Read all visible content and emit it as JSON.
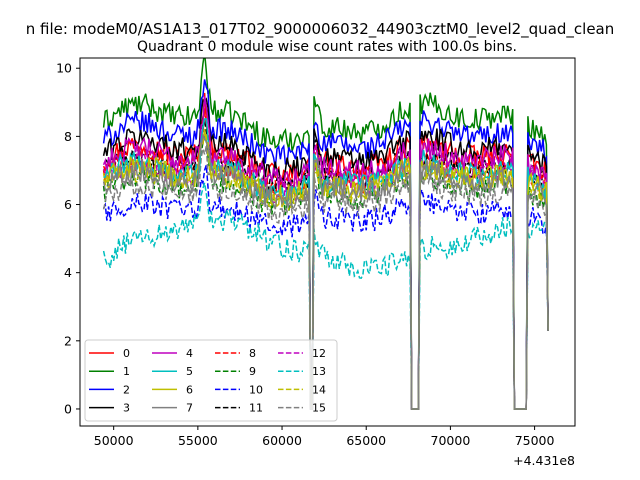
{
  "chart_data": {
    "type": "line",
    "suptitle": "n file: modeM0/AS1A13_017T02_9000006032_44903cztM0_level2_quad_clean",
    "title": "Quadrant 0 module wise count rates with 100.0s bins.",
    "xlabel": "",
    "ylabel": "",
    "x_offset_label": "+4.431e8",
    "xlim": [
      48000,
      77400
    ],
    "ylim": [
      -0.5,
      10.3
    ],
    "x_ticks": [
      50000,
      55000,
      60000,
      65000,
      70000,
      75000
    ],
    "x_tick_labels": [
      "50000",
      "55000",
      "60000",
      "65000",
      "70000",
      "75000"
    ],
    "y_ticks": [
      0,
      2,
      4,
      6,
      8,
      10
    ],
    "y_tick_labels": [
      "0",
      "2",
      "4",
      "6",
      "8",
      "10"
    ],
    "bin_width": 100,
    "gti": [
      [
        49400,
        61600
      ],
      [
        61900,
        67600
      ],
      [
        68200,
        73700
      ],
      [
        74600,
        75800
      ]
    ],
    "gaps": [
      [
        61650,
        61850
      ],
      [
        67650,
        68150
      ],
      [
        73750,
        74550
      ]
    ],
    "grid": false,
    "legend_position": "lower-left",
    "series": [
      {
        "name": "0",
        "color": "#ff0000",
        "dash": "solid",
        "level": 7.3
      },
      {
        "name": "1",
        "color": "#008000",
        "dash": "solid",
        "level": 8.4
      },
      {
        "name": "2",
        "color": "#0000ff",
        "dash": "solid",
        "level": 7.9
      },
      {
        "name": "3",
        "color": "#000000",
        "dash": "solid",
        "level": 7.5
      },
      {
        "name": "4",
        "color": "#bf00bf",
        "dash": "solid",
        "level": 7.2
      },
      {
        "name": "5",
        "color": "#00bfbf",
        "dash": "solid",
        "level": 6.8
      },
      {
        "name": "6",
        "color": "#bfbf00",
        "dash": "solid",
        "level": 6.7
      },
      {
        "name": "7",
        "color": "#808080",
        "dash": "solid",
        "level": 6.6
      },
      {
        "name": "8",
        "color": "#ff0000",
        "dash": "dashed",
        "level": 6.9
      },
      {
        "name": "9",
        "color": "#008000",
        "dash": "dashed",
        "level": 6.4
      },
      {
        "name": "10",
        "color": "#0000ff",
        "dash": "dashed",
        "level": 5.7
      },
      {
        "name": "11",
        "color": "#000000",
        "dash": "dashed",
        "level": 7.0
      },
      {
        "name": "12",
        "color": "#bf00bf",
        "dash": "dashed",
        "level": 6.8
      },
      {
        "name": "13",
        "color": "#00bfbf",
        "dash": "dashed",
        "level": 4.8
      },
      {
        "name": "14",
        "color": "#bfbf00",
        "dash": "dashed",
        "level": 6.6
      },
      {
        "name": "15",
        "color": "#808080",
        "dash": "dashed",
        "level": 6.2
      }
    ]
  }
}
